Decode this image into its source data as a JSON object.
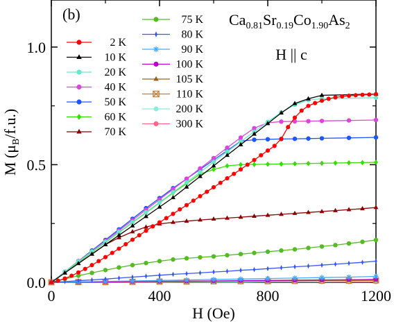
{
  "chart_data": {
    "type": "line",
    "panel_label": "(b)",
    "compound": {
      "parts": [
        {
          "t": "Ca"
        },
        {
          "t": "0.81",
          "sub": true
        },
        {
          "t": "Sr"
        },
        {
          "t": "0.19",
          "sub": true
        },
        {
          "t": "Co"
        },
        {
          "t": "1.90",
          "sub": true
        },
        {
          "t": "As"
        },
        {
          "t": "2",
          "sub": true
        }
      ]
    },
    "field_direction": "H || c",
    "xlabel": "H (Oe)",
    "ylabel": "M (μ",
    "ylabel_sub": "B",
    "ylabel_end": "/f.u.)",
    "xlim": [
      0,
      1200
    ],
    "ylim": [
      0,
      1.2
    ],
    "xticks": [
      0,
      400,
      800,
      1200
    ],
    "yticks": [
      0.0,
      0.5,
      1.0
    ],
    "ytick_labels": [
      "0.0",
      "0.5",
      "1.0"
    ],
    "legend": {
      "placement": "top-left, two columns",
      "column1": [
        "2 K",
        "10 K",
        "20 K",
        "40 K",
        "50 K",
        "60 K",
        "70 K"
      ],
      "column2": [
        "75 K",
        "80 K",
        "90 K",
        "100 K",
        "105 K",
        "110 K",
        "200 K",
        "300 K"
      ]
    },
    "series": [
      {
        "name": "2 K",
        "color": "#ff0000",
        "marker": "circle",
        "x": [
          0,
          25,
          50,
          75,
          100,
          125,
          150,
          175,
          200,
          225,
          250,
          275,
          300,
          325,
          350,
          375,
          400,
          425,
          450,
          475,
          500,
          525,
          550,
          575,
          600,
          625,
          650,
          675,
          700,
          725,
          750,
          775,
          800,
          825,
          850,
          875,
          900,
          925,
          950,
          975,
          1000,
          1025,
          1050,
          1075,
          1100,
          1125,
          1150,
          1175,
          1200
        ],
        "y": [
          0,
          0.007,
          0.016,
          0.028,
          0.042,
          0.057,
          0.073,
          0.09,
          0.107,
          0.125,
          0.143,
          0.162,
          0.181,
          0.2,
          0.219,
          0.238,
          0.255,
          0.273,
          0.291,
          0.31,
          0.328,
          0.347,
          0.366,
          0.385,
          0.404,
          0.423,
          0.442,
          0.461,
          0.48,
          0.5,
          0.52,
          0.54,
          0.56,
          0.58,
          0.61,
          0.66,
          0.7,
          0.73,
          0.75,
          0.762,
          0.772,
          0.78,
          0.786,
          0.79,
          0.793,
          0.795,
          0.797,
          0.798,
          0.8
        ]
      },
      {
        "name": "10 K",
        "color": "#000000",
        "marker": "triangle",
        "x": [
          0,
          50,
          100,
          150,
          200,
          250,
          300,
          350,
          400,
          450,
          500,
          550,
          600,
          650,
          700,
          750,
          800,
          850,
          900,
          950,
          1000,
          1200
        ],
        "y": [
          0,
          0.04,
          0.08,
          0.12,
          0.16,
          0.2,
          0.24,
          0.28,
          0.32,
          0.36,
          0.405,
          0.45,
          0.495,
          0.54,
          0.585,
          0.63,
          0.675,
          0.72,
          0.76,
          0.78,
          0.795,
          0.8
        ]
      },
      {
        "name": "20 K",
        "color": "#66e8c8",
        "marker": "circle",
        "x": [
          0,
          50,
          100,
          150,
          200,
          250,
          300,
          350,
          400,
          450,
          500,
          550,
          600,
          650,
          700,
          750,
          800,
          850,
          900,
          950,
          1000,
          1200
        ],
        "y": [
          0,
          0.045,
          0.088,
          0.13,
          0.172,
          0.214,
          0.256,
          0.298,
          0.34,
          0.383,
          0.425,
          0.468,
          0.512,
          0.555,
          0.598,
          0.64,
          0.682,
          0.722,
          0.755,
          0.775,
          0.78,
          0.785
        ]
      },
      {
        "name": "40 K",
        "color": "#dd44dd",
        "marker": "circle",
        "x": [
          0,
          50,
          100,
          150,
          200,
          250,
          300,
          350,
          400,
          450,
          500,
          550,
          600,
          650,
          700,
          750,
          800,
          850,
          900,
          950,
          1000,
          1100,
          1200
        ],
        "y": [
          0,
          0.045,
          0.09,
          0.132,
          0.176,
          0.22,
          0.264,
          0.308,
          0.352,
          0.396,
          0.44,
          0.484,
          0.528,
          0.572,
          0.615,
          0.655,
          0.678,
          0.683,
          0.684,
          0.685,
          0.686,
          0.688,
          0.69
        ]
      },
      {
        "name": "50 K",
        "color": "#1f55ff",
        "marker": "circle",
        "x": [
          0,
          50,
          100,
          150,
          200,
          250,
          300,
          350,
          400,
          450,
          500,
          550,
          600,
          650,
          700,
          750,
          800,
          850,
          900,
          950,
          1000,
          1100,
          1200
        ],
        "y": [
          0,
          0.045,
          0.09,
          0.135,
          0.18,
          0.225,
          0.27,
          0.315,
          0.358,
          0.4,
          0.44,
          0.48,
          0.52,
          0.56,
          0.6,
          0.606,
          0.608,
          0.609,
          0.61,
          0.611,
          0.612,
          0.614,
          0.616
        ]
      },
      {
        "name": "60 K",
        "color": "#33dd00",
        "marker": "diamond",
        "x": [
          0,
          50,
          100,
          150,
          200,
          250,
          300,
          350,
          400,
          450,
          500,
          550,
          600,
          650,
          700,
          750,
          800,
          850,
          900,
          950,
          1000,
          1050,
          1100,
          1150,
          1200
        ],
        "y": [
          0,
          0.043,
          0.085,
          0.128,
          0.17,
          0.212,
          0.254,
          0.296,
          0.338,
          0.38,
          0.42,
          0.46,
          0.48,
          0.495,
          0.5,
          0.501,
          0.502,
          0.503,
          0.504,
          0.505,
          0.506,
          0.507,
          0.508,
          0.509,
          0.51
        ]
      },
      {
        "name": "70 K",
        "color": "#880000",
        "marker": "triangle",
        "x": [
          0,
          50,
          100,
          150,
          200,
          250,
          300,
          350,
          400,
          450,
          500,
          550,
          600,
          650,
          700,
          750,
          800,
          850,
          900,
          950,
          1000,
          1050,
          1100,
          1150,
          1200
        ],
        "y": [
          0,
          0.04,
          0.08,
          0.12,
          0.16,
          0.19,
          0.215,
          0.235,
          0.248,
          0.255,
          0.26,
          0.265,
          0.269,
          0.273,
          0.277,
          0.281,
          0.285,
          0.289,
          0.293,
          0.297,
          0.301,
          0.305,
          0.309,
          0.313,
          0.318
        ]
      },
      {
        "name": "75 K",
        "color": "#55bb22",
        "marker": "circle",
        "x": [
          0,
          50,
          100,
          150,
          200,
          250,
          300,
          350,
          400,
          450,
          500,
          550,
          600,
          650,
          700,
          750,
          800,
          850,
          900,
          950,
          1000,
          1050,
          1100,
          1150,
          1200
        ],
        "y": [
          0,
          0.014,
          0.028,
          0.04,
          0.052,
          0.063,
          0.073,
          0.082,
          0.09,
          0.097,
          0.102,
          0.106,
          0.11,
          0.115,
          0.12,
          0.125,
          0.13,
          0.135,
          0.14,
          0.146,
          0.152,
          0.158,
          0.165,
          0.172,
          0.18
        ]
      },
      {
        "name": "80 K",
        "color": "#3355ff",
        "marker": "thin-diamond",
        "x": [
          0,
          50,
          100,
          150,
          200,
          250,
          300,
          350,
          400,
          450,
          500,
          550,
          600,
          650,
          700,
          750,
          800,
          850,
          900,
          950,
          1000,
          1050,
          1100,
          1150,
          1200
        ],
        "y": [
          0,
          0.003,
          0.007,
          0.01,
          0.014,
          0.018,
          0.022,
          0.026,
          0.03,
          0.034,
          0.037,
          0.04,
          0.044,
          0.047,
          0.051,
          0.054,
          0.058,
          0.062,
          0.066,
          0.069,
          0.073,
          0.077,
          0.081,
          0.085,
          0.09
        ]
      },
      {
        "name": "90 K",
        "color": "#44aaff",
        "marker": "star",
        "x": [
          0,
          100,
          200,
          300,
          400,
          500,
          600,
          700,
          800,
          900,
          1000,
          1100,
          1200
        ],
        "y": [
          0,
          0.002,
          0.004,
          0.006,
          0.008,
          0.01,
          0.012,
          0.014,
          0.016,
          0.018,
          0.02,
          0.022,
          0.025
        ]
      },
      {
        "name": "100 K",
        "color": "#bb00cc",
        "marker": "circle",
        "x": [
          0,
          100,
          200,
          300,
          400,
          500,
          600,
          700,
          800,
          900,
          1000,
          1100,
          1200
        ],
        "y": [
          0,
          0.001,
          0.002,
          0.003,
          0.004,
          0.005,
          0.006,
          0.007,
          0.008,
          0.009,
          0.01,
          0.011,
          0.012
        ]
      },
      {
        "name": "105 K",
        "color": "#996622",
        "marker": "triangle",
        "x": [
          0,
          100,
          200,
          300,
          400,
          500,
          600,
          700,
          800,
          900,
          1000,
          1100,
          1200
        ],
        "y": [
          0,
          0.001,
          0.002,
          0.003,
          0.003,
          0.004,
          0.005,
          0.006,
          0.007,
          0.007,
          0.008,
          0.009,
          0.01
        ]
      },
      {
        "name": "110 K",
        "color": "#cc7733",
        "marker": "boxed-x",
        "x": [
          0,
          100,
          200,
          300,
          400,
          500,
          600,
          700,
          800,
          900,
          1000,
          1100,
          1200
        ],
        "y": [
          0,
          0.001,
          0.001,
          0.002,
          0.003,
          0.003,
          0.004,
          0.005,
          0.005,
          0.006,
          0.007,
          0.007,
          0.008
        ]
      },
      {
        "name": "200 K",
        "color": "#88eedd",
        "marker": "circle",
        "x": [
          0,
          100,
          200,
          300,
          400,
          500,
          600,
          700,
          800,
          900,
          1000,
          1100,
          1200
        ],
        "y": [
          0,
          0.0,
          0.001,
          0.001,
          0.001,
          0.002,
          0.002,
          0.002,
          0.003,
          0.003,
          0.003,
          0.004,
          0.004
        ]
      },
      {
        "name": "300 K",
        "color": "#ff6688",
        "marker": "circle",
        "x": [
          0,
          100,
          200,
          300,
          400,
          500,
          600,
          700,
          800,
          900,
          1000,
          1100,
          1200
        ],
        "y": [
          0,
          0.0,
          0.0,
          0.001,
          0.001,
          0.001,
          0.001,
          0.001,
          0.002,
          0.002,
          0.002,
          0.002,
          0.002
        ]
      }
    ],
    "grid": false
  }
}
